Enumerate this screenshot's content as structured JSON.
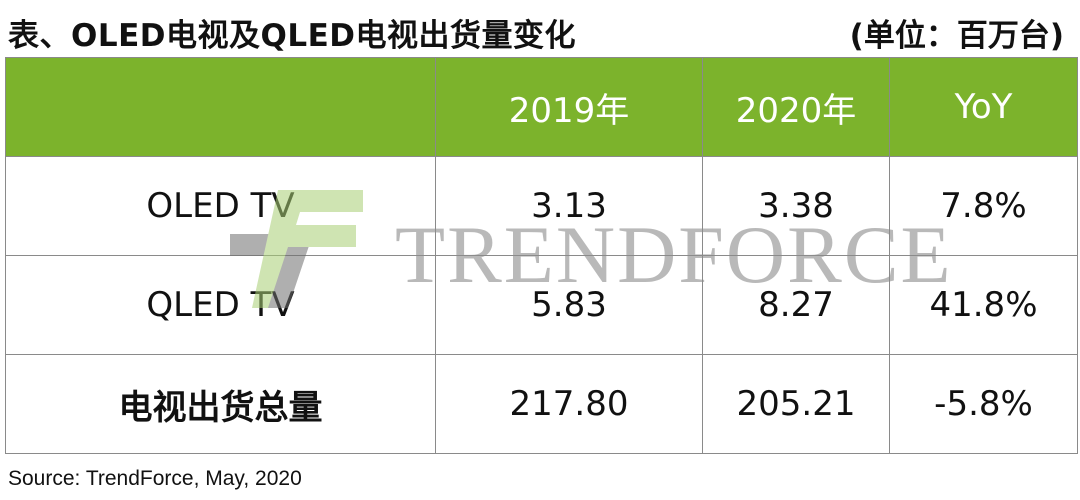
{
  "title": "表、OLED电视及QLED电视出货量变化",
  "unit": "(单位：百万台)",
  "table": {
    "headers": [
      "",
      "2019年",
      "2020年",
      "YoY"
    ],
    "rows": [
      {
        "label": "OLED TV",
        "y2019": "3.13",
        "y2020": "3.38",
        "yoy": "7.8%"
      },
      {
        "label": "QLED TV",
        "y2019": "5.83",
        "y2020": "8.27",
        "yoy": "41.8%"
      },
      {
        "label": "电视出货总量",
        "y2019": "217.80",
        "y2020": "205.21",
        "yoy": "-5.8%"
      }
    ]
  },
  "watermark": {
    "text": "TRENDFORCE",
    "colors": {
      "dark": "#6e6e6e",
      "light": "#a8cf74"
    }
  },
  "source": "Source: TrendForce, May, 2020"
}
